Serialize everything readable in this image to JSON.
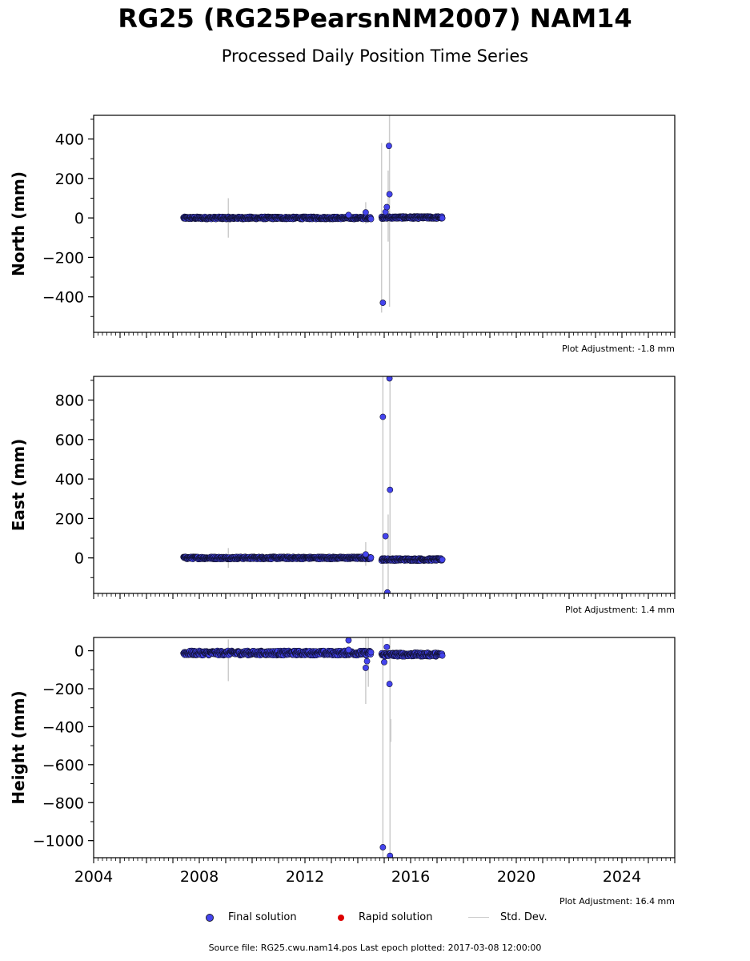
{
  "title": "RG25 (RG25PearsnNM2007) NAM14",
  "subtitle": "Processed Daily Position Time Series",
  "legend": {
    "final": "Final solution",
    "rapid": "Rapid solution",
    "stddev": "Std. Dev."
  },
  "colors": {
    "final": "#4444ee",
    "rapid": "#dd0000",
    "stddev": "#cccccc"
  },
  "footer": {
    "source": "Source file: RG25.cwu.nam14.pos  Last epoch plotted: 2017-03-08 12:00:00"
  },
  "chart_data": [
    {
      "type": "scatter",
      "ylabel": "North (mm)",
      "adjustment": "Plot Adjustment: -1.8 mm",
      "xlim": [
        2004,
        2026
      ],
      "ylim": [
        -580,
        520
      ],
      "yticks": [
        -400,
        -200,
        0,
        200,
        400
      ],
      "xticks": [
        2004,
        2008,
        2012,
        2016,
        2020,
        2024
      ],
      "show_xtick_labels": false,
      "bands": [
        {
          "start": 2007.4,
          "end": 2014.5,
          "center": 0,
          "spread": 6
        },
        {
          "start": 2014.9,
          "end": 2017.2,
          "center": 2,
          "spread": 6
        }
      ],
      "outliers": [
        [
          2013.65,
          15
        ],
        [
          2014.3,
          28
        ],
        [
          2014.95,
          -430
        ],
        [
          2015.05,
          30
        ],
        [
          2015.1,
          55
        ],
        [
          2015.18,
          365
        ],
        [
          2015.2,
          120
        ]
      ],
      "errorbars": [
        [
          2009.1,
          -100,
          100
        ],
        [
          2014.3,
          -30,
          80
        ],
        [
          2014.9,
          -480,
          380
        ],
        [
          2015.15,
          -120,
          240
        ],
        [
          2015.2,
          -450,
          520
        ]
      ]
    },
    {
      "type": "scatter",
      "ylabel": "East (mm)",
      "adjustment": "Plot Adjustment: 1.4 mm",
      "xlim": [
        2004,
        2026
      ],
      "ylim": [
        -180,
        920
      ],
      "yticks": [
        0,
        200,
        400,
        600,
        800
      ],
      "xticks": [
        2004,
        2008,
        2012,
        2016,
        2020,
        2024
      ],
      "show_xtick_labels": false,
      "bands": [
        {
          "start": 2007.4,
          "end": 2014.5,
          "center": 0,
          "spread": 6
        },
        {
          "start": 2014.9,
          "end": 2017.2,
          "center": -8,
          "spread": 6
        }
      ],
      "outliers": [
        [
          2014.3,
          18
        ],
        [
          2014.95,
          715
        ],
        [
          2015.05,
          110
        ],
        [
          2015.12,
          -175
        ],
        [
          2015.2,
          910
        ],
        [
          2015.22,
          345
        ]
      ],
      "errorbars": [
        [
          2009.1,
          -50,
          50
        ],
        [
          2014.3,
          -40,
          80
        ],
        [
          2014.95,
          -180,
          920
        ],
        [
          2015.15,
          -180,
          220
        ],
        [
          2015.22,
          0,
          920
        ]
      ]
    },
    {
      "type": "scatter",
      "ylabel": "Height (mm)",
      "adjustment": "Plot Adjustment: 16.4 mm",
      "xlim": [
        2004,
        2026
      ],
      "ylim": [
        -1090,
        70
      ],
      "yticks": [
        -1000,
        -800,
        -600,
        -400,
        -200,
        0
      ],
      "xticks": [
        2004,
        2008,
        2012,
        2016,
        2020,
        2024
      ],
      "show_xtick_labels": true,
      "bands": [
        {
          "start": 2007.4,
          "end": 2014.5,
          "center": -12,
          "spread": 12
        },
        {
          "start": 2014.9,
          "end": 2017.2,
          "center": -20,
          "spread": 10
        }
      ],
      "outliers": [
        [
          2013.65,
          55
        ],
        [
          2013.65,
          5
        ],
        [
          2014.3,
          -90
        ],
        [
          2014.35,
          -55
        ],
        [
          2014.95,
          -1035
        ],
        [
          2015.0,
          -60
        ],
        [
          2015.1,
          20
        ],
        [
          2015.2,
          -175
        ],
        [
          2015.22,
          -1080
        ]
      ],
      "errorbars": [
        [
          2009.1,
          -160,
          60
        ],
        [
          2014.3,
          -280,
          70
        ],
        [
          2014.4,
          -190,
          70
        ],
        [
          2014.95,
          -1090,
          70
        ],
        [
          2015.22,
          -1090,
          70
        ],
        [
          2015.25,
          -480,
          -360
        ]
      ]
    }
  ]
}
